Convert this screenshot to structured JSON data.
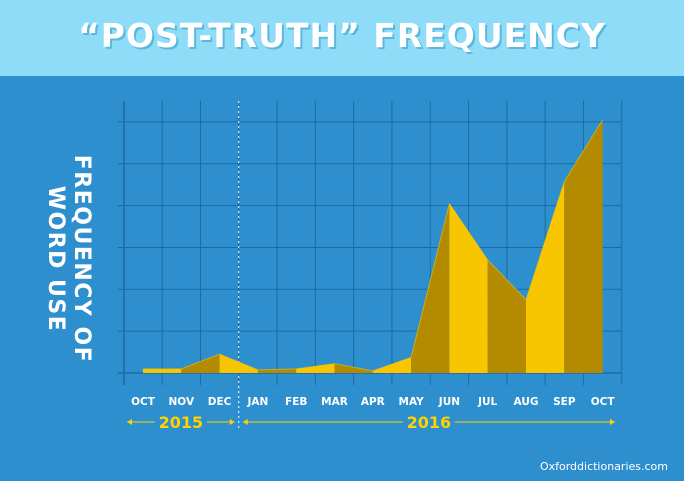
{
  "title": "“POST-TRUTH” FREQUENCY",
  "footer": "Oxforddictionaries.com",
  "colors": {
    "background": "#2e8fce",
    "title_band": "#8fdcf8",
    "fill_light": "#f7c600",
    "fill_dark": "#b38a00",
    "year_label": "#ffd200",
    "grid": "#1d6aa3"
  },
  "chart_data": {
    "type": "area",
    "xlabel": "",
    "ylabel": "FREQUENCY OF WORD USE",
    "ylabel_lines": [
      "FREQUENCY OF",
      "WORD USE"
    ],
    "categories": [
      "OCT",
      "NOV",
      "DEC",
      "JAN",
      "FEB",
      "MAR",
      "APR",
      "MAY",
      "JUN",
      "JUL",
      "AUG",
      "SEP",
      "OCT"
    ],
    "values": [
      0.4,
      0.4,
      1.8,
      0.3,
      0.4,
      0.9,
      0.2,
      1.5,
      16.2,
      10.8,
      7.0,
      18.3,
      24.2
    ],
    "ylim": [
      0,
      26
    ],
    "y_ticks": [
      0,
      4,
      8,
      12,
      16,
      20,
      24
    ],
    "years": [
      {
        "label": "2015",
        "from": "OCT",
        "to": "DEC"
      },
      {
        "label": "2016",
        "from": "JAN",
        "to": "OCT"
      }
    ],
    "year_divider_after": "DEC",
    "grid": true,
    "legend": "none"
  }
}
